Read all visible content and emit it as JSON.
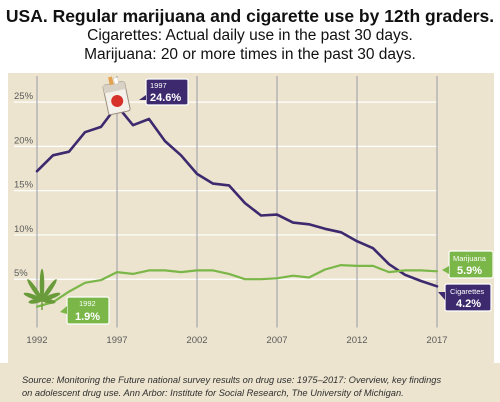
{
  "header": {
    "title": "USA. Regular marijuana and cigarette use by 12th graders.",
    "subtitle_line1": "Cigarettes: Actual daily use in the past 30 days.",
    "subtitle_line2": "Marijuana: 20 or more times in the past 30 days."
  },
  "footer": {
    "source_line1": "Source: Monitoring the Future national survey results on drug use: 1975–2017: Overview, key findings",
    "source_line2": "on adolescent drug use. Ann Arbor: Institute for Social Research, The University of Michigan."
  },
  "colors": {
    "cigarettes": "#3d2a6e",
    "marijuana": "#7ab648",
    "panel_bg": "#ece4cf",
    "grid": "#ffffff",
    "year_line": "#9a9aa8"
  },
  "icons": [
    "cigarette-pack-icon",
    "cannabis-leaf-icon"
  ],
  "chart_data": {
    "type": "line",
    "title": "USA. Regular marijuana and cigarette use by 12th graders.",
    "xlabel": "",
    "ylabel": "",
    "x": [
      1992,
      1993,
      1994,
      1995,
      1996,
      1997,
      1998,
      1999,
      2000,
      2001,
      2002,
      2003,
      2004,
      2005,
      2006,
      2007,
      2008,
      2009,
      2010,
      2011,
      2012,
      2013,
      2014,
      2015,
      2016,
      2017
    ],
    "xticks": [
      1992,
      1997,
      2002,
      2007,
      2012,
      2017
    ],
    "xtick_labels": [
      "1992",
      "1997",
      "2002",
      "2007",
      "2012",
      "2017"
    ],
    "yticks": [
      5,
      10,
      15,
      20,
      25
    ],
    "ytick_labels": [
      "5%",
      "10%",
      "15%",
      "20%",
      "25%"
    ],
    "xlim": [
      1992,
      2017
    ],
    "ylim": [
      0,
      27.5
    ],
    "grid": true,
    "series": [
      {
        "name": "Cigarettes",
        "values": [
          17.2,
          19.0,
          19.4,
          21.6,
          22.2,
          24.6,
          22.4,
          23.1,
          20.6,
          19.0,
          16.9,
          15.8,
          15.6,
          13.6,
          12.2,
          12.3,
          11.4,
          11.2,
          10.7,
          10.3,
          9.3,
          8.5,
          6.7,
          5.5,
          4.8,
          4.2
        ]
      },
      {
        "name": "Marijuana",
        "values": [
          1.9,
          2.4,
          3.6,
          4.6,
          4.9,
          5.8,
          5.6,
          6.0,
          6.0,
          5.8,
          6.0,
          6.0,
          5.6,
          5.0,
          5.0,
          5.1,
          5.4,
          5.2,
          6.1,
          6.6,
          6.5,
          6.5,
          5.8,
          6.0,
          6.0,
          5.9
        ]
      }
    ],
    "annotations": [
      {
        "series": "Cigarettes",
        "year": "1997",
        "value": "24.6%"
      },
      {
        "series": "Marijuana",
        "year": "1992",
        "value": "1.9%"
      },
      {
        "series": "Marijuana",
        "name": "Marijuana",
        "value": "5.9%"
      },
      {
        "series": "Cigarettes",
        "name": "Cigarettes",
        "value": "4.2%"
      }
    ]
  }
}
